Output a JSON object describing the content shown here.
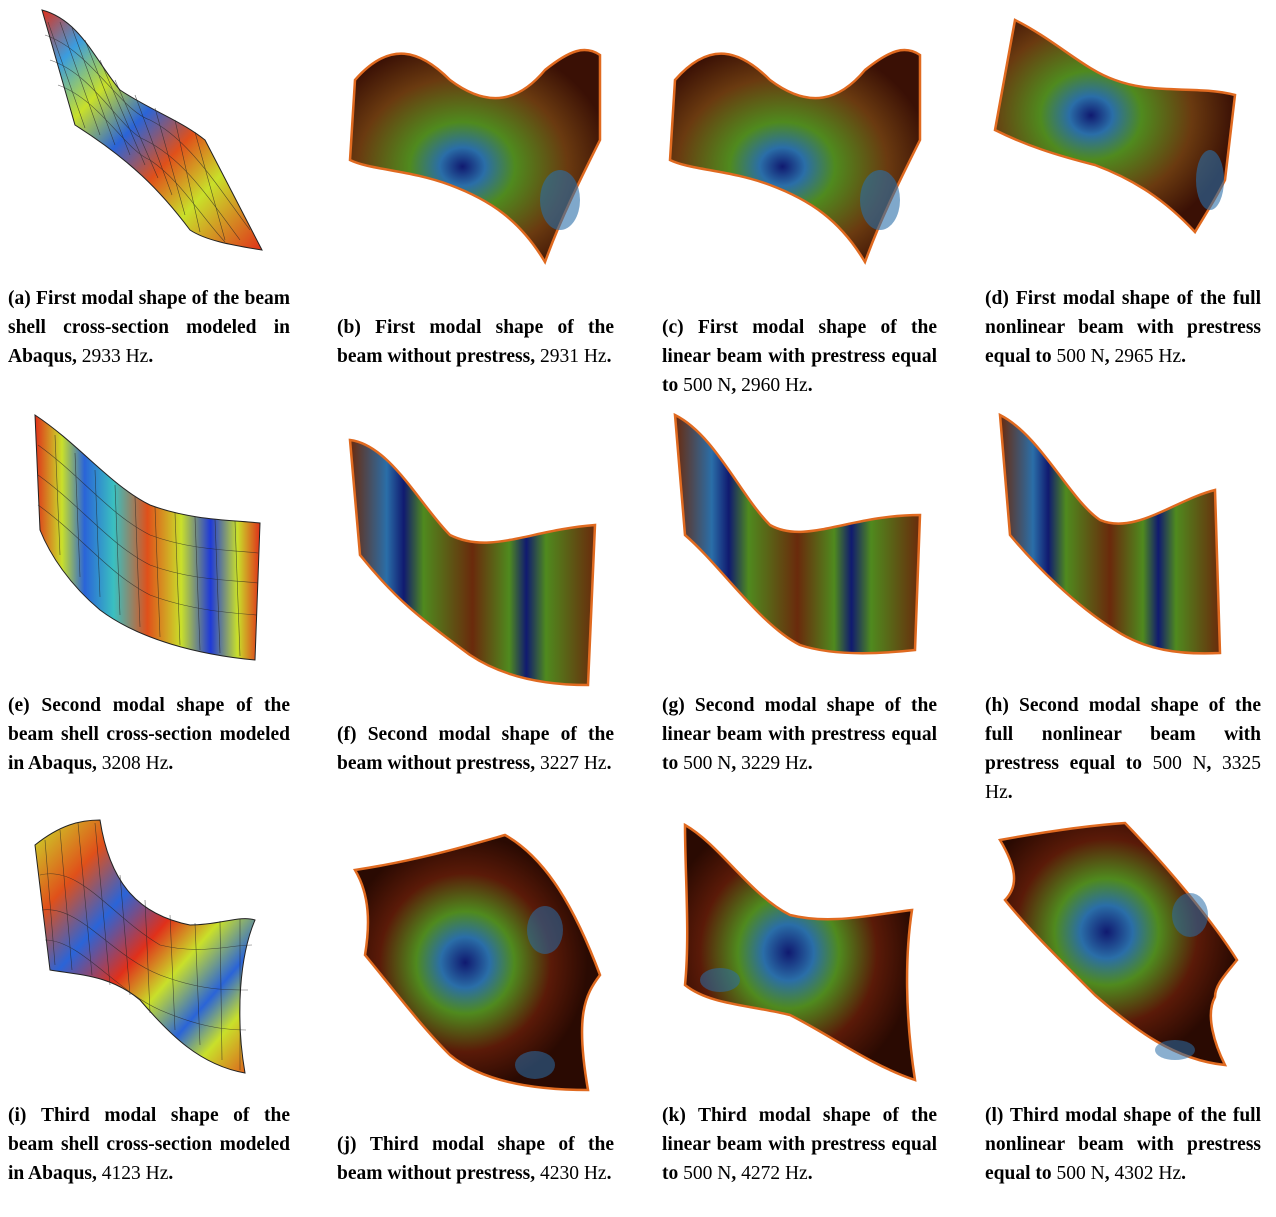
{
  "figures": [
    {
      "id": "a",
      "label": "(a)",
      "title": "First modal shape of the beam shell cross-section modeled in Abaqus,",
      "pre": "",
      "force": "",
      "post": "",
      "freq": "2933 Hz",
      "style": "mesh"
    },
    {
      "id": "b",
      "label": "(b)",
      "title": "First modal shape of the beam without prestress,",
      "pre": "",
      "force": "",
      "post": "",
      "freq": "2931 Hz",
      "style": "smooth"
    },
    {
      "id": "c",
      "label": "(c)",
      "title": "First modal shape of the linear beam with prestress equal to",
      "pre": "",
      "force": "500 N",
      "post": ",",
      "freq": "2960 Hz",
      "style": "smooth"
    },
    {
      "id": "d",
      "label": "(d)",
      "title": "First modal shape of the full nonlinear beam with prestress equal to",
      "pre": "",
      "force": "500 N",
      "post": ",",
      "freq": "2965 Hz",
      "style": "smooth"
    },
    {
      "id": "e",
      "label": "(e)",
      "title": "Second modal shape of the beam shell cross-section modeled in Abaqus,",
      "pre": "",
      "force": "",
      "post": "",
      "freq": "3208 Hz",
      "style": "mesh"
    },
    {
      "id": "f",
      "label": "(f)",
      "title": "Second modal shape of the beam without prestress,",
      "pre": "",
      "force": "",
      "post": "",
      "freq": "3227 Hz",
      "style": "smooth"
    },
    {
      "id": "g",
      "label": "(g)",
      "title": "Second modal shape of the linear beam with prestress equal to",
      "pre": "",
      "force": "500 N",
      "post": ",",
      "freq": "3229 Hz",
      "style": "smooth"
    },
    {
      "id": "h",
      "label": "(h)",
      "title": "Second modal shape of the full nonlinear beam with prestress equal to",
      "pre": "",
      "force": "500 N",
      "post": ",",
      "freq": "3325 Hz",
      "style": "smooth"
    },
    {
      "id": "i",
      "label": "(i)",
      "title": "Third modal shape of the beam shell cross-section modeled in Abaqus,",
      "pre": "",
      "force": "",
      "post": "",
      "freq": "4123 Hz",
      "style": "mesh"
    },
    {
      "id": "j",
      "label": "(j)",
      "title": "Third modal shape of the beam without prestress,",
      "pre": "",
      "force": "",
      "post": "",
      "freq": "4230 Hz",
      "style": "smooth"
    },
    {
      "id": "k",
      "label": "(k)",
      "title": "Third modal shape of the linear beam with prestress equal to",
      "pre": "",
      "force": "500 N",
      "post": ",",
      "freq": "4272 Hz",
      "style": "smooth"
    },
    {
      "id": "l",
      "label": "(l)",
      "title": "Third modal shape of the full nonlinear beam with prestress equal to",
      "pre": "",
      "force": "500 N",
      "post": ",",
      "freq": "4302 Hz",
      "style": "smooth"
    }
  ],
  "colors": {
    "mesh_base": "#c9e02a",
    "mesh_hot": "#e0301a",
    "mesh_cold": "#1f55d8",
    "smooth_base": "#7a2a0c",
    "smooth_green": "#4f8a1e",
    "smooth_node": "#1a2a8a",
    "edge": "#e06a20"
  }
}
